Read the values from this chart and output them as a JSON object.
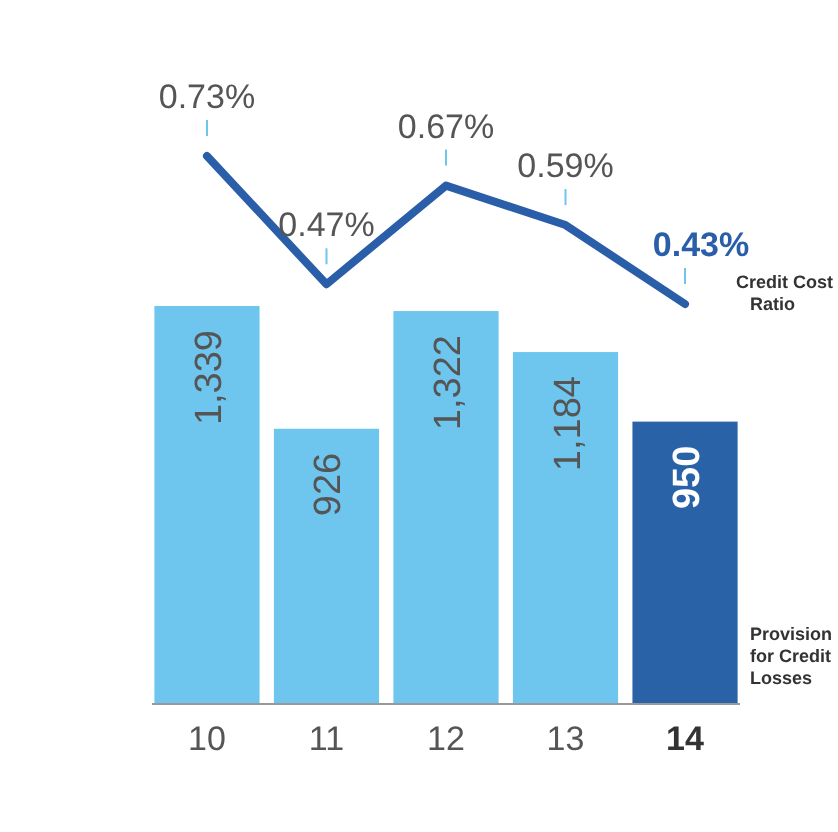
{
  "chart_data": {
    "type": "bar",
    "categories": [
      "10",
      "11",
      "12",
      "13",
      "14"
    ],
    "series": [
      {
        "name": "Provision for Credit Losses",
        "colors": [
          "#6ec6ef",
          "#6ec6ef",
          "#6ec6ef",
          "#6ec6ef",
          "#2a62a8"
        ],
        "values": [
          1339,
          926,
          1322,
          1184,
          950
        ],
        "value_labels": [
          "1,339",
          "926",
          "1,322",
          "1,184",
          "950"
        ]
      },
      {
        "name": "Credit Cost Ratio",
        "type": "line",
        "axis": "y2",
        "color": "#2a5ea8",
        "values": [
          0.73,
          0.47,
          0.67,
          0.59,
          0.43
        ],
        "value_labels": [
          "0.73%",
          "0.47%",
          "0.67%",
          "0.59%",
          "0.43%"
        ]
      }
    ]
  }
}
